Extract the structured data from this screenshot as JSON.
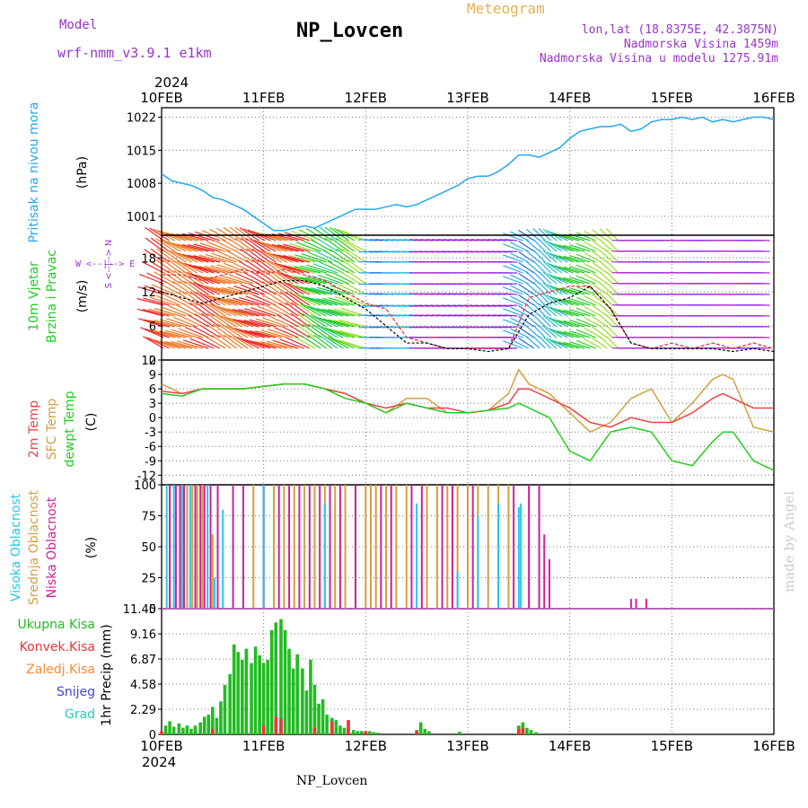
{
  "header": {
    "title": "NP_Lovcen",
    "model_label": "Model",
    "model_value": "wrf-nmm_v3.9.1 e1km",
    "meteogram_label": "Meteogram",
    "lonlat": "lon,lat (18.8375E, 42.3875N)",
    "elevation": "Nadmorska Visina 1459m",
    "model_elevation": "Nadmorska Visina u modelu 1275.91m"
  },
  "footer": {
    "station": "NP_Lovcen",
    "watermark": "made by Angel"
  },
  "colors": {
    "pressure": "#22a8ee",
    "temp2m": "#ee4444",
    "sfc": "#d4a040",
    "dewpt": "#22cc22",
    "high_cloud": "#22c8ee",
    "mid_cloud": "#d4a040",
    "low_cloud": "#cc2299",
    "precip": "#22bb22",
    "conv": "#ee3333",
    "frozen": "#ff8833",
    "snow": "#4444dd",
    "graupel": "#22ccbb"
  },
  "chart_data": [
    {
      "type": "line",
      "panel": "pressure",
      "ylabel_left": "Pritisak na nivou mora",
      "ylabel": "(hPa)",
      "top_axis_year": "2024",
      "x_ticks": [
        "10FEB",
        "11FEB",
        "12FEB",
        "13FEB",
        "14FEB",
        "15FEB",
        "16FEB"
      ],
      "xlim_days": [
        10,
        16
      ],
      "ylim": [
        997,
        1024
      ],
      "y_ticks": [
        1001,
        1008,
        1015,
        1022
      ],
      "grid": true,
      "series": [
        {
          "x": [
            10.0,
            10.1,
            10.2,
            10.3,
            10.4,
            10.5,
            10.6,
            10.7,
            10.8,
            10.9,
            11.0,
            11.1,
            11.2,
            11.3,
            11.4,
            11.5,
            11.6,
            11.7,
            11.8,
            11.9,
            12.0,
            12.1,
            12.2,
            12.3,
            12.4,
            12.5,
            12.6,
            12.7,
            12.8,
            12.9,
            13.0,
            13.1,
            13.2,
            13.3,
            13.4,
            13.5,
            13.6,
            13.7,
            13.8,
            13.9,
            14.0,
            14.1,
            14.2,
            14.3,
            14.4,
            14.5,
            14.6,
            14.7,
            14.8,
            14.9,
            15.0,
            15.1,
            15.2,
            15.3,
            15.4,
            15.5,
            15.6,
            15.7,
            15.8,
            15.9,
            16.0
          ],
          "values": [
            1010,
            1008.5,
            1008,
            1007.5,
            1006.5,
            1005,
            1004.5,
            1003.5,
            1002.5,
            1001,
            999.5,
            998,
            998,
            998.5,
            999,
            998.5,
            999.5,
            1000.5,
            1001.5,
            1002.5,
            1002.5,
            1002.5,
            1003,
            1003.5,
            1003,
            1003.5,
            1004.5,
            1005.5,
            1006.5,
            1007.5,
            1009,
            1009.5,
            1009.5,
            1010.5,
            1012,
            1014,
            1014,
            1013.5,
            1014.5,
            1015.5,
            1017.5,
            1019,
            1019.5,
            1020,
            1020,
            1020.5,
            1019,
            1019.5,
            1021,
            1021.5,
            1021.5,
            1022,
            1021.5,
            1022,
            1021,
            1021.5,
            1021,
            1021.5,
            1022,
            1022,
            1021.5
          ]
        }
      ]
    },
    {
      "type": "line",
      "panel": "wind",
      "ylabel_left": [
        "10m Vjetar",
        "Brzina i Pravac"
      ],
      "ylabel": "(m/s)",
      "compass_label": "W <--|--> E",
      "compass_v": "S <--|--> N",
      "ylim": [
        0,
        22
      ],
      "y_ticks": [
        0,
        6,
        12,
        18
      ],
      "series": [
        {
          "name": "speed",
          "x": [
            10.0,
            10.2,
            10.4,
            10.6,
            10.8,
            11.0,
            11.2,
            11.4,
            11.6,
            11.8,
            12.0,
            12.2,
            12.4,
            12.6,
            12.8,
            13.0,
            13.2,
            13.4,
            13.6,
            13.8,
            14.0,
            14.2,
            14.4,
            14.6,
            14.8,
            15.0,
            15.2,
            15.4,
            15.6,
            15.8,
            16.0
          ],
          "values": [
            12,
            11,
            10,
            11,
            12,
            13,
            14,
            14,
            13,
            11,
            9,
            6,
            3,
            3,
            2,
            2,
            1.5,
            2,
            8,
            10,
            11,
            13,
            9,
            3,
            2,
            2,
            2,
            2,
            1.5,
            2,
            1.5
          ]
        },
        {
          "name": "gust",
          "x": [
            10.0,
            10.2,
            10.4,
            10.6,
            10.8,
            11.0,
            11.2,
            11.4,
            11.6,
            11.8,
            12.0,
            12.2,
            12.4,
            12.6,
            12.8,
            13.0,
            13.2,
            13.4,
            13.6,
            13.8,
            14.0,
            14.2,
            14.4,
            14.6,
            14.8,
            15.0,
            15.2,
            15.4,
            15.6,
            15.8,
            16.0
          ],
          "values": [
            15,
            15,
            14,
            15,
            16,
            15,
            16,
            15,
            14,
            12,
            10,
            9,
            4,
            3,
            2,
            2,
            2,
            2,
            11,
            12,
            13,
            13,
            9,
            3,
            2,
            3,
            2,
            3,
            2,
            3,
            2
          ]
        }
      ]
    },
    {
      "type": "line",
      "panel": "temperature",
      "ylabel_left": [
        "2m Temp",
        "SFC Temp",
        "dewpt Temp"
      ],
      "ylabel": "(C)",
      "ylim": [
        -14,
        12
      ],
      "y_ticks": [
        -12,
        -9,
        -6,
        -3,
        0,
        3,
        6,
        9,
        12
      ],
      "x": [
        10.0,
        10.2,
        10.4,
        10.6,
        10.8,
        11.0,
        11.2,
        11.4,
        11.6,
        11.8,
        12.0,
        12.2,
        12.4,
        12.6,
        12.8,
        13.0,
        13.2,
        13.4,
        13.5,
        13.6,
        13.8,
        14.0,
        14.2,
        14.4,
        14.6,
        14.8,
        15.0,
        15.2,
        15.4,
        15.5,
        15.6,
        15.8,
        16.0
      ],
      "series": [
        {
          "name": "2m Temp",
          "values": [
            5.5,
            5,
            6,
            6,
            6,
            6.5,
            7,
            7,
            6,
            5,
            3,
            2,
            3,
            2,
            2,
            1,
            1.5,
            3,
            6,
            6,
            4,
            2,
            -1,
            -2,
            0,
            -1,
            -1,
            1,
            4,
            5,
            4,
            2,
            2
          ]
        },
        {
          "name": "SFC Temp",
          "values": [
            7,
            5,
            6,
            6,
            6,
            6.5,
            7,
            7,
            6,
            5,
            3,
            1,
            4,
            4,
            1,
            1,
            1.5,
            5,
            10,
            7,
            5,
            1,
            -3,
            -1,
            4,
            6,
            -1,
            3,
            8,
            9,
            8,
            -2,
            -3
          ]
        },
        {
          "name": "dewpt Temp",
          "values": [
            5,
            4.5,
            6,
            6,
            6,
            6.5,
            7,
            7,
            6,
            4,
            3,
            1,
            3,
            2,
            1,
            1,
            1.5,
            2,
            3,
            2,
            0,
            -7,
            -9,
            -3,
            -2,
            -3,
            -9,
            -10,
            -5,
            -3,
            -3,
            -9,
            -11
          ]
        }
      ]
    },
    {
      "type": "bar",
      "panel": "cloud",
      "ylabel_left": [
        "Visoka Oblacnost",
        "Srednja Oblacnost",
        "Niska Oblacnost"
      ],
      "ylabel": "(%)",
      "ylim": [
        0,
        100
      ],
      "y_ticks": [
        0,
        25,
        50,
        75,
        100
      ],
      "series": [
        {
          "name": "Visoka Oblacnost",
          "x": [
            10.05,
            10.12,
            10.2,
            10.28,
            10.45,
            10.52,
            10.6,
            11.0,
            11.6,
            12.5,
            12.9,
            13.1,
            13.3,
            13.5,
            13.52
          ],
          "values": [
            100,
            100,
            100,
            100,
            100,
            25,
            80,
            100,
            85,
            85,
            30,
            75,
            85,
            82,
            85
          ]
        },
        {
          "name": "Srednja Oblacnost",
          "x": [
            10.2,
            10.25,
            10.3,
            10.35,
            10.4,
            10.5,
            10.9,
            11.0,
            11.1,
            11.2,
            11.3,
            11.4,
            11.5,
            11.6,
            11.7,
            11.8,
            11.9,
            12.0,
            12.05,
            12.1,
            12.2,
            12.3,
            12.4,
            12.6,
            12.7,
            12.8,
            12.9,
            13.0,
            13.1,
            13.2,
            13.3,
            13.4,
            13.6,
            13.7
          ],
          "values": [
            100,
            100,
            100,
            100,
            100,
            60,
            100,
            100,
            100,
            100,
            100,
            100,
            100,
            100,
            100,
            100,
            100,
            100,
            100,
            100,
            100,
            100,
            100,
            100,
            100,
            100,
            100,
            100,
            100,
            100,
            100,
            100,
            100,
            100
          ]
        },
        {
          "name": "Niska Oblacnost",
          "x": [
            10.08,
            10.14,
            10.18,
            10.22,
            10.33,
            10.38,
            10.42,
            10.48,
            10.55,
            10.7,
            10.8,
            11.0,
            11.15,
            11.25,
            11.35,
            11.45,
            11.55,
            11.65,
            11.75,
            11.9,
            12.15,
            12.25,
            12.45,
            12.55,
            12.75,
            12.85,
            13.05,
            13.45,
            13.6,
            13.7,
            13.75,
            13.8,
            14.6,
            14.65,
            14.75
          ],
          "values": [
            100,
            100,
            100,
            100,
            100,
            100,
            100,
            100,
            100,
            100,
            100,
            100,
            100,
            100,
            100,
            100,
            100,
            100,
            100,
            100,
            100,
            100,
            100,
            100,
            100,
            100,
            100,
            100,
            100,
            100,
            60,
            40,
            8,
            8,
            8
          ]
        }
      ]
    },
    {
      "type": "bar",
      "panel": "precip",
      "ylabel_left": [
        "Ukupna Kisa",
        "Konvek.Kisa",
        "Zaledj.Kisa",
        "Snijeg",
        "Grad"
      ],
      "ylabel": "1hr Precip (mm)",
      "ylim": [
        0,
        11.45
      ],
      "y_ticks": [
        0,
        2.29,
        4.58,
        6.87,
        9.16,
        11.45
      ],
      "x_ticks": [
        "10FEB",
        "11FEB",
        "12FEB",
        "13FEB",
        "14FEB",
        "15FEB",
        "16FEB"
      ],
      "bottom_axis_year": "2024",
      "series": [
        {
          "name": "Ukupna Kisa",
          "x": [
            10.04,
            10.08,
            10.12,
            10.17,
            10.21,
            10.25,
            10.29,
            10.33,
            10.38,
            10.42,
            10.46,
            10.5,
            10.54,
            10.58,
            10.62,
            10.67,
            10.71,
            10.75,
            10.79,
            10.83,
            10.88,
            10.92,
            10.96,
            11.0,
            11.04,
            11.08,
            11.12,
            11.17,
            11.21,
            11.25,
            11.29,
            11.33,
            11.38,
            11.42,
            11.46,
            11.5,
            11.54,
            11.58,
            11.62,
            11.67,
            11.71,
            11.75,
            11.79,
            11.83,
            11.88,
            11.92,
            11.96,
            12.0,
            12.04,
            12.08,
            12.12,
            12.5,
            12.54,
            12.58,
            12.62,
            12.92,
            13.5,
            13.54,
            13.58,
            13.62,
            13.67
          ],
          "values": [
            0.8,
            1.2,
            0.7,
            1,
            0.6,
            0.8,
            0.5,
            0.8,
            1.1,
            1.6,
            1.8,
            2.5,
            1.5,
            3,
            4.5,
            5.5,
            8.2,
            7.5,
            6.8,
            7.8,
            6.5,
            8,
            7.2,
            6.5,
            6.8,
            9.5,
            10.2,
            10.5,
            9.5,
            7.8,
            6,
            7.3,
            6,
            4,
            6.8,
            4.5,
            2.8,
            3.2,
            1.8,
            1.5,
            1.3,
            0.8,
            0.6,
            0.5,
            0.4,
            0.3,
            0.3,
            0.2,
            0.3,
            0.2,
            0.15,
            0.4,
            1.1,
            0.5,
            0.3,
            0.25,
            0.8,
            1.1,
            0.6,
            0.4,
            0.2
          ]
        },
        {
          "name": "Konvek.Kisa",
          "x": [
            10.0,
            10.5,
            11.0,
            11.12,
            11.17,
            11.5,
            11.67,
            11.83,
            12.0,
            12.5,
            13.5,
            13.54
          ],
          "values": [
            0.3,
            0.5,
            0.8,
            1.6,
            1.4,
            0.6,
            1.2,
            1.3,
            0.3,
            0.3,
            0.5,
            0.6
          ]
        }
      ]
    }
  ]
}
